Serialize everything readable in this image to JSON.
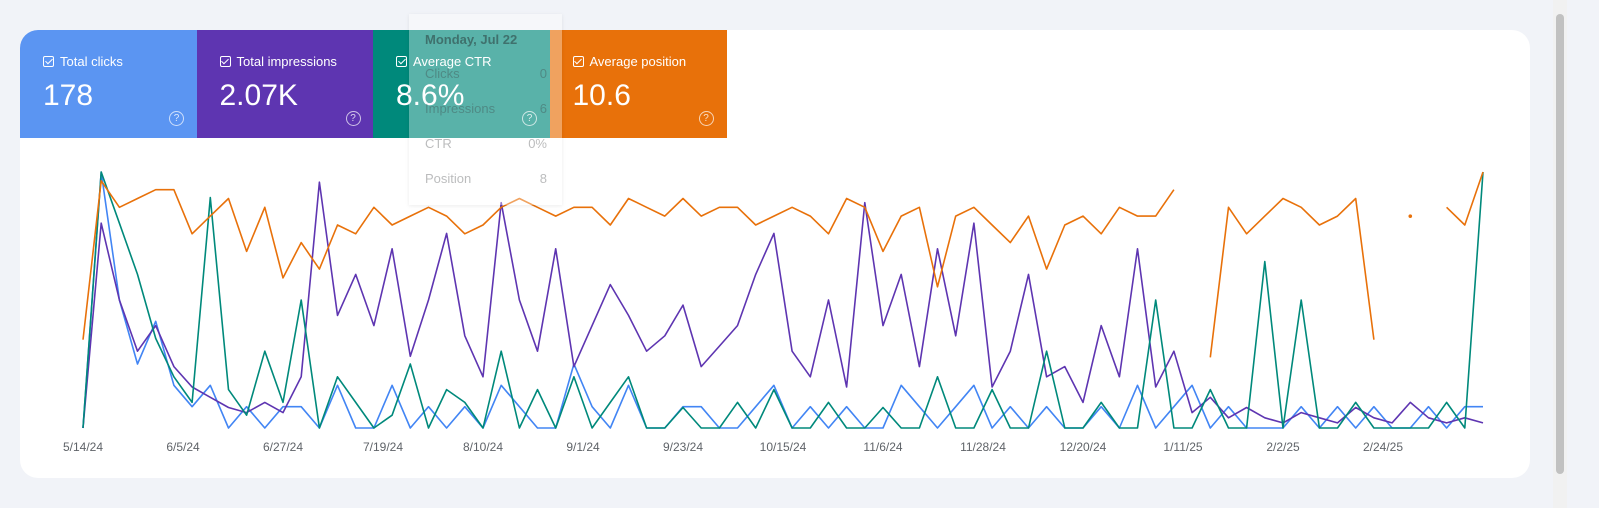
{
  "chart_data": {
    "type": "line",
    "x": [
      "5/14/24",
      "5/18/24",
      "5/22/24",
      "5/26/24",
      "5/30/24",
      "6/3/24",
      "6/7/24",
      "6/11/24",
      "6/15/24",
      "6/19/24",
      "6/23/24",
      "6/27/24",
      "7/1/24",
      "7/5/24",
      "7/9/24",
      "7/13/24",
      "7/17/24",
      "7/21/24",
      "7/25/24",
      "7/29/24",
      "8/2/24",
      "8/6/24",
      "8/10/24",
      "8/14/24",
      "8/18/24",
      "8/22/24",
      "8/26/24",
      "8/30/24",
      "9/3/24",
      "9/7/24",
      "9/11/24",
      "9/15/24",
      "9/19/24",
      "9/23/24",
      "9/27/24",
      "10/1/24",
      "10/5/24",
      "10/9/24",
      "10/13/24",
      "10/17/24",
      "10/21/24",
      "10/25/24",
      "10/29/24",
      "11/2/24",
      "11/6/24",
      "11/10/24",
      "11/14/24",
      "11/18/24",
      "11/22/24",
      "11/26/24",
      "11/30/24",
      "12/4/24",
      "12/8/24",
      "12/12/24",
      "12/16/24",
      "12/20/24",
      "12/24/24",
      "12/28/24",
      "1/1/25",
      "1/5/25",
      "1/9/25",
      "1/13/25",
      "1/17/25",
      "1/21/25",
      "1/25/25",
      "1/29/25",
      "2/2/25",
      "2/6/25",
      "2/10/25",
      "2/14/25",
      "2/18/25",
      "2/22/25",
      "2/26/25",
      "3/2/25",
      "3/6/25",
      "3/10/25",
      "3/14/25",
      "3/18/25"
    ],
    "xlim": [
      "5/14/24",
      "3/18/25"
    ],
    "xticks": [
      "5/14/24",
      "6/5/24",
      "6/27/24",
      "7/19/24",
      "8/10/24",
      "9/1/24",
      "9/23/24",
      "10/15/24",
      "11/6/24",
      "11/28/24",
      "12/20/24",
      "1/11/25",
      "2/2/25",
      "2/24/25"
    ],
    "series": [
      {
        "name": "Total clicks",
        "total": "178",
        "color": "#4285f4",
        "card_color": "#5b95f2",
        "ylim": [
          0,
          12
        ],
        "values": [
          0,
          12,
          6,
          3,
          5,
          2,
          1,
          2,
          0,
          1,
          0,
          1,
          1,
          0,
          2,
          0,
          0,
          2,
          0,
          1,
          0,
          1,
          0,
          2,
          1,
          0,
          0,
          3,
          1,
          0,
          2,
          0,
          0,
          1,
          1,
          0,
          0,
          1,
          2,
          0,
          1,
          0,
          1,
          0,
          0,
          2,
          1,
          0,
          1,
          2,
          0,
          1,
          0,
          1,
          0,
          0,
          1,
          0,
          2,
          0,
          1,
          2,
          0,
          1,
          0,
          0,
          0,
          1,
          0,
          1,
          0,
          1,
          0,
          0,
          1,
          0,
          1,
          1
        ]
      },
      {
        "name": "Total impressions",
        "total": "2.07K",
        "color": "#5e35b1",
        "card_color": "#5e35b1",
        "ylim": [
          0,
          50
        ],
        "values": [
          0,
          40,
          25,
          15,
          20,
          12,
          8,
          6,
          4,
          3,
          5,
          3,
          10,
          48,
          22,
          30,
          20,
          35,
          14,
          25,
          38,
          18,
          10,
          44,
          25,
          15,
          35,
          12,
          20,
          28,
          22,
          15,
          18,
          24,
          12,
          16,
          20,
          30,
          38,
          15,
          10,
          25,
          8,
          44,
          20,
          30,
          12,
          35,
          18,
          40,
          8,
          15,
          30,
          10,
          12,
          5,
          20,
          10,
          35,
          8,
          15,
          3,
          6,
          2,
          4,
          2,
          1,
          3,
          2,
          1,
          4,
          2,
          1,
          5,
          2,
          1,
          2,
          1
        ]
      },
      {
        "name": "Average CTR",
        "total": "8.6%",
        "color": "#00897b",
        "card_color": "#00897b",
        "ylim": [
          0,
          100
        ],
        "values": [
          0,
          100,
          80,
          60,
          35,
          20,
          10,
          90,
          15,
          5,
          30,
          10,
          50,
          0,
          20,
          10,
          0,
          5,
          25,
          0,
          15,
          10,
          0,
          30,
          0,
          15,
          0,
          20,
          0,
          10,
          20,
          0,
          0,
          8,
          0,
          0,
          10,
          0,
          15,
          0,
          0,
          10,
          0,
          0,
          8,
          0,
          0,
          20,
          0,
          0,
          15,
          0,
          0,
          30,
          0,
          0,
          10,
          0,
          0,
          50,
          0,
          0,
          15,
          0,
          0,
          65,
          0,
          50,
          0,
          0,
          10,
          0,
          0,
          0,
          0,
          10,
          0,
          100
        ]
      },
      {
        "name": "Average position",
        "total": "10.6",
        "color": "#e8710a",
        "card_color": "#e8710a",
        "ylim": [
          30,
          1
        ],
        "values": [
          20,
          2,
          5,
          4,
          3,
          3,
          8,
          6,
          4,
          10,
          5,
          13,
          9,
          12,
          7,
          8,
          5,
          7,
          6,
          5,
          6,
          8,
          7,
          5,
          4,
          5,
          6,
          5,
          5,
          7,
          4,
          5,
          6,
          4,
          6,
          5,
          5,
          7,
          6,
          5,
          6,
          8,
          4,
          5,
          10,
          6,
          5,
          14,
          6,
          5,
          7,
          9,
          6,
          12,
          7,
          6,
          8,
          5,
          6,
          6,
          3,
          null,
          22,
          5,
          8,
          6,
          4,
          5,
          7,
          6,
          4,
          20,
          null,
          6,
          null,
          5,
          7,
          1
        ]
      }
    ]
  },
  "tooltip": {
    "date": "Monday, Jul 22",
    "rows": [
      {
        "label": "Clicks",
        "value": "0"
      },
      {
        "label": "Impressions",
        "value": "6"
      },
      {
        "label": "CTR",
        "value": "0%"
      },
      {
        "label": "Position",
        "value": "8"
      }
    ]
  }
}
